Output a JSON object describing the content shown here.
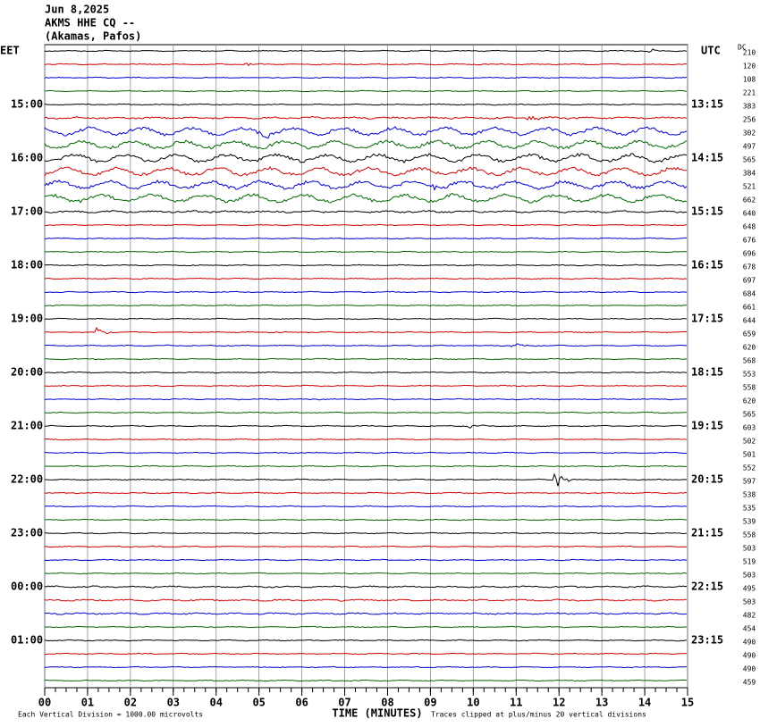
{
  "chart_data": {
    "type": "helicorder",
    "title_lines": [
      "Jun 8,2025",
      "AKMS HHE CQ --",
      "(Akamas, Pafos)"
    ],
    "left_zone": "EET",
    "right_zone": "UTC",
    "dc_header": "DC",
    "left_labels": [
      "15:00",
      "16:00",
      "17:00",
      "18:00",
      "19:00",
      "20:00",
      "21:00",
      "22:00",
      "23:00",
      "00:00",
      "01:00"
    ],
    "right_labels": [
      "13:15",
      "14:15",
      "15:15",
      "16:15",
      "17:15",
      "18:15",
      "19:15",
      "20:15",
      "21:15",
      "22:15",
      "23:15"
    ],
    "dc_values": [
      210,
      120,
      108,
      221,
      383,
      256,
      302,
      497,
      565,
      384,
      521,
      662,
      640,
      648,
      676,
      696,
      678,
      697,
      684,
      661,
      644,
      659,
      620,
      568,
      553,
      558,
      620,
      565,
      603,
      502,
      501,
      552,
      597,
      538,
      535,
      539,
      558,
      503,
      519,
      503,
      495,
      503,
      482,
      454,
      490,
      490,
      490,
      459
    ],
    "colors": [
      "#000000",
      "#cc0000",
      "#0000cc",
      "#006600"
    ],
    "x_label": "TIME (MINUTES)",
    "xlim": [
      0,
      15
    ],
    "xticks": [
      {
        "value": 0,
        "label": "00"
      },
      {
        "value": 1,
        "label": "01"
      },
      {
        "value": 2,
        "label": "02"
      },
      {
        "value": 3,
        "label": "03"
      },
      {
        "value": 4,
        "label": "04"
      },
      {
        "value": 5,
        "label": "05"
      },
      {
        "value": 6,
        "label": "06"
      },
      {
        "value": 7,
        "label": "07"
      },
      {
        "value": 8,
        "label": "08"
      },
      {
        "value": 9,
        "label": "09"
      },
      10,
      11,
      12,
      13,
      14,
      15
    ],
    "footer_left": "Each Vertical Division = 1000.00 microvolts",
    "footer_right": "Traces clipped at plus/minus 20 vertical divisions"
  }
}
